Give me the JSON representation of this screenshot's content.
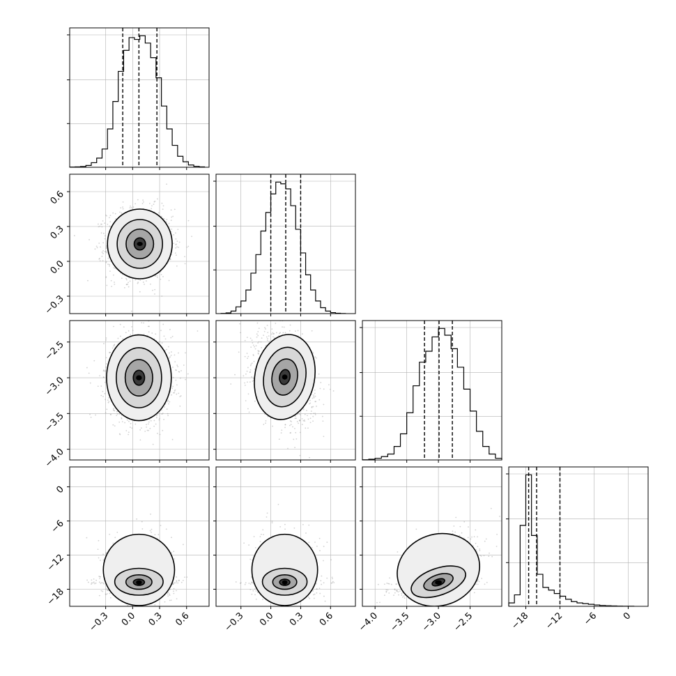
{
  "chart_data": {
    "type": "corner",
    "title": "",
    "parameters": [
      "",
      "",
      "",
      ""
    ],
    "colors": {
      "line": "#000000",
      "grid": "#b0b0b0",
      "points": "#9a9a9a",
      "background": "#ffffff"
    },
    "grid": true,
    "axes": [
      {
        "ticks": [
          -0.3,
          0.0,
          0.3,
          0.6
        ],
        "tick_labels": [
          "−0.3",
          "0.0",
          "0.3",
          "0.6"
        ],
        "range": [
          -0.7,
          0.85
        ]
      },
      {
        "ticks": [
          -0.3,
          0.0,
          0.3,
          0.6
        ],
        "tick_labels": [
          "−0.3",
          "0.0",
          "0.3",
          "0.6"
        ],
        "range": [
          -0.55,
          0.85
        ]
      },
      {
        "ticks": [
          -4.0,
          -3.5,
          -3.0,
          -2.5
        ],
        "tick_labels": [
          "−4.0",
          "−3.5",
          "−3.0",
          "−2.5"
        ],
        "range": [
          -4.2,
          -2.0
        ]
      },
      {
        "ticks": [
          -18,
          -12,
          -6,
          0
        ],
        "tick_labels": [
          "−18",
          "−12",
          "−6",
          "0"
        ],
        "range": [
          -21,
          3.5
        ]
      }
    ],
    "y_ticks": [
      [],
      {
        "ticks": [
          -0.3,
          0.0,
          0.3,
          0.6
        ],
        "tick_labels": [
          "−0.3",
          "0.0",
          "0.3",
          "0.6"
        ],
        "range": [
          -0.45,
          0.75
        ]
      },
      {
        "ticks": [
          -4.0,
          -3.5,
          -3.0,
          -2.5
        ],
        "tick_labels": [
          "−4.0",
          "−3.5",
          "−3.0",
          "−2.5"
        ],
        "range": [
          -4.15,
          -2.2
        ]
      },
      {
        "ticks": [
          -18,
          -12,
          -6,
          0
        ],
        "tick_labels": [
          "−18",
          "−12",
          "−6",
          "0"
        ],
        "range": [
          -21,
          3.5
        ]
      }
    ],
    "marginals": [
      {
        "quantiles": [
          -0.11,
          0.07,
          0.27
        ],
        "bin_edges": [
          -0.7,
          -0.64,
          -0.58,
          -0.52,
          -0.46,
          -0.4,
          -0.34,
          -0.28,
          -0.22,
          -0.16,
          -0.1,
          -0.04,
          0.02,
          0.08,
          0.14,
          0.2,
          0.26,
          0.32,
          0.38,
          0.44,
          0.5,
          0.56,
          0.62,
          0.68,
          0.74,
          0.8
        ],
        "counts": [
          2,
          4,
          8,
          20,
          50,
          100,
          200,
          420,
          720,
          1050,
          1280,
          1420,
          1400,
          1440,
          1360,
          1200,
          980,
          670,
          420,
          240,
          120,
          60,
          25,
          10,
          4
        ]
      },
      {
        "quantiles": [
          0.0,
          0.15,
          0.3
        ],
        "bin_edges": [
          -0.5,
          -0.45,
          -0.4,
          -0.35,
          -0.3,
          -0.25,
          -0.2,
          -0.15,
          -0.1,
          -0.05,
          0.0,
          0.05,
          0.1,
          0.15,
          0.2,
          0.25,
          0.3,
          0.35,
          0.4,
          0.45,
          0.5,
          0.55,
          0.6,
          0.65,
          0.7,
          0.75
        ],
        "counts": [
          2,
          8,
          30,
          80,
          150,
          280,
          480,
          700,
          980,
          1200,
          1420,
          1560,
          1540,
          1480,
          1280,
          1000,
          720,
          460,
          280,
          150,
          70,
          30,
          12,
          4,
          1
        ]
      },
      {
        "quantiles": [
          -3.22,
          -2.99,
          -2.78
        ],
        "bin_edges": [
          -4.2,
          -4.1,
          -4.0,
          -3.9,
          -3.8,
          -3.7,
          -3.6,
          -3.5,
          -3.4,
          -3.3,
          -3.2,
          -3.1,
          -3.0,
          -2.9,
          -2.8,
          -2.7,
          -2.6,
          -2.5,
          -2.4,
          -2.3,
          -2.2,
          -2.1,
          -2.0
        ],
        "counts": [
          2,
          8,
          20,
          40,
          70,
          160,
          310,
          560,
          880,
          1160,
          1290,
          1460,
          1560,
          1480,
          1320,
          1100,
          840,
          580,
          340,
          160,
          70,
          20
        ]
      },
      {
        "quantiles": [
          -17.5,
          -16.1,
          -12.0
        ],
        "bin_edges": [
          -21,
          -20,
          -19,
          -18,
          -17,
          -16,
          -15,
          -14,
          -13,
          -12,
          -11,
          -10,
          -9,
          -8,
          -7,
          -6,
          -5,
          -4,
          -3,
          -2,
          -1,
          0,
          1
        ],
        "counts": [
          100,
          340,
          2400,
          3900,
          2100,
          950,
          560,
          480,
          380,
          300,
          210,
          140,
          100,
          80,
          60,
          40,
          25,
          15,
          10,
          6,
          3,
          2
        ]
      }
    ],
    "pairs": [
      {
        "x": 0,
        "y": 1,
        "x_mean": 0.08,
        "y_mean": 0.15,
        "x_sd": 0.18,
        "y_sd": 0.15,
        "corr": 0.0,
        "skew": 0
      },
      {
        "x": 0,
        "y": 2,
        "x_mean": 0.07,
        "y_mean": -3.0,
        "x_sd": 0.18,
        "y_sd": 0.3,
        "corr": 0.0,
        "skew": 0
      },
      {
        "x": 1,
        "y": 2,
        "x_mean": 0.14,
        "y_mean": -2.99,
        "x_sd": 0.15,
        "y_sd": 0.3,
        "corr": -0.3,
        "skew": 0
      },
      {
        "x": 0,
        "y": 3,
        "x_mean": 0.07,
        "y_mean": -16.8,
        "x_sd": 0.18,
        "y_sd": 3.3,
        "corr": 0.0,
        "skew": 1
      },
      {
        "x": 1,
        "y": 3,
        "x_mean": 0.14,
        "y_mean": -16.8,
        "x_sd": 0.15,
        "y_sd": 3.3,
        "corr": 0.0,
        "skew": 1
      },
      {
        "x": 2,
        "y": 3,
        "x_mean": -3.0,
        "y_mean": -16.8,
        "x_sd": 0.3,
        "y_sd": 3.3,
        "corr": 0.55,
        "skew": 1
      }
    ]
  }
}
